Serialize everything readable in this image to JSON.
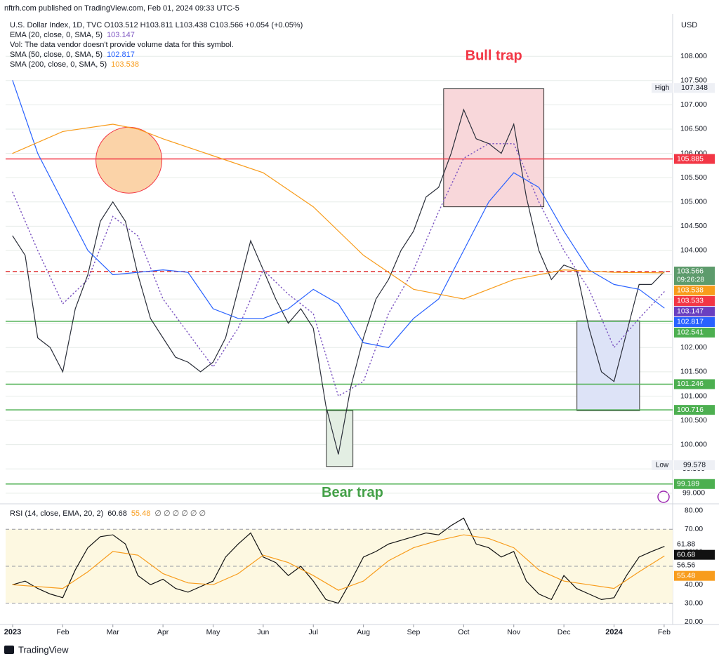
{
  "header": {
    "published": "nftrh.com published on TradingView.com, Feb 01, 2024 09:33 UTC-5",
    "symbol_line": "U.S. Dollar Index, 1D, TVC  O103.512  H103.811  L103.438  C103.566  +0.054 (+0.05%)",
    "volume_note": "Vol: The data vendor doesn't provide volume data for this symbol.",
    "currency": "USD",
    "logo": "TradingView"
  },
  "chart_data": [
    {
      "type": "line",
      "ylim": [
        98.81,
        108.87
      ],
      "xlim": [
        -0.14,
        13.17
      ],
      "grid": true,
      "yticks": [
        {
          "value": 99,
          "label": "99.000"
        },
        {
          "value": 99.5,
          "label": "99.500"
        },
        {
          "value": 100,
          "label": "100.000"
        },
        {
          "value": 100.5,
          "label": "100.500"
        },
        {
          "value": 101,
          "label": "101.000"
        },
        {
          "value": 101.5,
          "label": "101.500"
        },
        {
          "value": 102,
          "label": "102.000"
        },
        {
          "value": 102.5,
          "label": "102.500"
        },
        {
          "value": 103,
          "label": "103.000"
        },
        {
          "value": 103.5,
          "label": "103.500"
        },
        {
          "value": 104,
          "label": "104.000"
        },
        {
          "value": 104.5,
          "label": "104.500"
        },
        {
          "value": 105,
          "label": "105.000"
        },
        {
          "value": 105.5,
          "label": "105.500"
        },
        {
          "value": 106,
          "label": "106.000"
        },
        {
          "value": 106.5,
          "label": "106.500"
        },
        {
          "value": 107,
          "label": "107.000"
        },
        {
          "value": 107.5,
          "label": "107.500"
        },
        {
          "value": 108,
          "label": "108.000"
        }
      ],
      "series": [
        {
          "name": "U.S. Dollar Index",
          "color": "#2a2e39",
          "x": [
            0,
            0.25,
            0.5,
            0.75,
            1,
            1.25,
            1.5,
            1.75,
            2,
            2.25,
            2.5,
            2.75,
            3,
            3.25,
            3.5,
            3.75,
            4,
            4.25,
            4.5,
            4.75,
            5,
            5.25,
            5.5,
            5.75,
            6,
            6.25,
            6.5,
            6.75,
            7,
            7.25,
            7.5,
            7.75,
            8,
            8.25,
            8.5,
            8.75,
            9,
            9.25,
            9.5,
            9.75,
            10,
            10.25,
            10.5,
            10.75,
            11,
            11.25,
            11.5,
            11.75,
            12,
            12.25,
            12.5,
            12.75,
            13
          ],
          "values": [
            104.3,
            103.9,
            102.2,
            102.0,
            101.5,
            102.8,
            103.5,
            104.6,
            105.0,
            104.6,
            103.5,
            102.6,
            102.2,
            101.8,
            101.7,
            101.5,
            101.7,
            102.2,
            103.2,
            104.2,
            103.6,
            103.0,
            102.5,
            102.8,
            102.4,
            100.8,
            99.8,
            101.2,
            102.2,
            103.0,
            103.4,
            104.0,
            104.4,
            105.1,
            105.3,
            106.0,
            106.9,
            106.3,
            106.2,
            106.0,
            106.6,
            105.1,
            104.0,
            103.4,
            103.7,
            103.6,
            102.4,
            101.5,
            101.3,
            102.3,
            103.3,
            103.3,
            103.566
          ]
        },
        {
          "name": "EMA (20, close, 0, SMA, 5)",
          "color": "#7e57c2",
          "dashed": true,
          "x": [
            0,
            0.5,
            1,
            1.5,
            2,
            2.5,
            3,
            3.5,
            4,
            4.5,
            5,
            5.5,
            6,
            6.5,
            7,
            7.5,
            8,
            8.5,
            9,
            9.5,
            10,
            10.5,
            11,
            11.5,
            12,
            12.5,
            13
          ],
          "values": [
            105.2,
            104.0,
            102.9,
            103.4,
            104.7,
            104.3,
            103.0,
            102.3,
            101.6,
            102.4,
            103.6,
            103.1,
            102.7,
            101.0,
            101.3,
            102.7,
            103.6,
            104.8,
            105.9,
            106.2,
            106.2,
            105.0,
            104.0,
            103.2,
            102.0,
            102.6,
            103.147
          ]
        },
        {
          "name": "SMA (50, close, 0, SMA, 5)",
          "color": "#2962ff",
          "x": [
            0,
            0.5,
            1,
            1.5,
            2,
            2.5,
            3,
            3.5,
            4,
            4.5,
            5,
            5.5,
            6,
            6.5,
            7,
            7.5,
            8,
            8.5,
            9,
            9.5,
            10,
            10.5,
            11,
            11.5,
            12,
            12.5,
            13
          ],
          "values": [
            107.5,
            106.0,
            105.0,
            104.0,
            103.5,
            103.55,
            103.6,
            103.55,
            102.8,
            102.6,
            102.6,
            102.8,
            103.2,
            102.9,
            102.1,
            102.0,
            102.6,
            103.0,
            104.0,
            105.0,
            105.6,
            105.3,
            104.4,
            103.6,
            103.3,
            103.2,
            102.817
          ]
        },
        {
          "name": "SMA (200, close, 0, SMA, 5)",
          "color": "#f89c1c",
          "x": [
            0,
            1,
            2,
            2.5,
            3,
            4,
            5,
            6,
            7,
            8,
            9,
            10,
            11,
            12,
            13
          ],
          "values": [
            106.0,
            106.45,
            106.6,
            106.5,
            106.3,
            105.95,
            105.6,
            104.9,
            103.9,
            103.2,
            103.0,
            103.4,
            103.6,
            103.55,
            103.538
          ]
        }
      ],
      "hlines": [
        {
          "value": 105.885,
          "color": "#f23645"
        },
        {
          "value": 102.541,
          "color": "#4caf50"
        },
        {
          "value": 101.246,
          "color": "#4caf50"
        },
        {
          "value": 100.716,
          "color": "#4caf50"
        },
        {
          "value": 99.189,
          "color": "#4caf50"
        },
        {
          "value": 103.566,
          "color": "#e03030",
          "dashed": true
        }
      ],
      "zones": [
        {
          "x": [
            8.6,
            10.6
          ],
          "y": [
            104.9,
            107.33
          ],
          "color": "#f8d7da"
        },
        {
          "x": [
            6.26,
            6.79
          ],
          "y": [
            99.55,
            100.7
          ],
          "color": "#e3eee3"
        },
        {
          "x": [
            11.26,
            12.51
          ],
          "y": [
            100.7,
            102.55
          ],
          "color": "#dde3f7"
        }
      ],
      "circle": {
        "x": 2.32,
        "y": 105.86,
        "color": "#fbd3a8"
      },
      "annotations": [
        {
          "text": "Bull trap",
          "x": 9.6,
          "y": 108.0,
          "color": "#f23645"
        },
        {
          "text": "Bear trap",
          "x": 6.78,
          "y": 99.0,
          "color": "#43a047"
        }
      ],
      "high": {
        "label": "High",
        "value": 107.348
      },
      "low": {
        "label": "Low",
        "value": 99.578
      },
      "countdown": "09:26:28",
      "tags": [
        {
          "value": 105.885,
          "color": "#f23645"
        },
        {
          "value": 103.566,
          "color": "#5d9b6c"
        },
        {
          "value": 103.538,
          "color": "#f89c1c"
        },
        {
          "value": 103.533,
          "color": "#f23645"
        },
        {
          "value": 103.147,
          "color": "#6a3fc0"
        },
        {
          "value": 102.817,
          "color": "#2962ff"
        },
        {
          "value": 102.541,
          "color": "#4caf50"
        },
        {
          "value": 101.246,
          "color": "#4caf50"
        },
        {
          "value": 100.716,
          "color": "#4caf50"
        },
        {
          "value": 99.189,
          "color": "#4caf50"
        }
      ],
      "xticks": [
        {
          "value": 0,
          "label": "2023"
        },
        {
          "value": 1,
          "label": "Feb"
        },
        {
          "value": 2,
          "label": "Mar"
        },
        {
          "value": 3,
          "label": "Apr"
        },
        {
          "value": 4,
          "label": "May"
        },
        {
          "value": 5,
          "label": "Jun"
        },
        {
          "value": 6,
          "label": "Jul"
        },
        {
          "value": 7,
          "label": "Aug"
        },
        {
          "value": 8,
          "label": "Sep"
        },
        {
          "value": 9,
          "label": "Oct"
        },
        {
          "value": 10,
          "label": "Nov"
        },
        {
          "value": 11,
          "label": "Dec"
        },
        {
          "value": 12,
          "label": "2024"
        },
        {
          "value": 13,
          "label": "Feb"
        }
      ]
    },
    {
      "type": "line",
      "title": "RSI (14, close, EMA, 20, 2)",
      "symbols": "∅ ∅ ∅ ∅ ∅ ∅",
      "ylim": [
        18.5,
        83
      ],
      "xlim": [
        -0.14,
        13.17
      ],
      "band": [
        30,
        70
      ],
      "levels": [
        70,
        50,
        30
      ],
      "yticks": [
        {
          "value": 20,
          "label": "20.00"
        },
        {
          "value": 30,
          "label": "30.00"
        },
        {
          "value": 40,
          "label": "40.00"
        },
        {
          "value": 50,
          "label": "50.00"
        },
        {
          "value": 60,
          "label": "60.00"
        },
        {
          "value": 70,
          "label": "70.00"
        },
        {
          "value": 80,
          "label": "80.00"
        }
      ],
      "series": [
        {
          "name": "RSI",
          "color": "#111111",
          "x": [
            0,
            0.25,
            0.5,
            0.75,
            1,
            1.25,
            1.5,
            1.75,
            2,
            2.25,
            2.5,
            2.75,
            3,
            3.25,
            3.5,
            3.75,
            4,
            4.25,
            4.5,
            4.75,
            5,
            5.25,
            5.5,
            5.75,
            6,
            6.25,
            6.5,
            6.75,
            7,
            7.25,
            7.5,
            7.75,
            8,
            8.25,
            8.5,
            8.75,
            9,
            9.25,
            9.5,
            9.75,
            10,
            10.25,
            10.5,
            10.75,
            11,
            11.25,
            11.5,
            11.75,
            12,
            12.25,
            12.5,
            12.75,
            13
          ],
          "values": [
            40,
            42,
            38,
            35,
            33,
            48,
            60,
            66,
            67,
            62,
            45,
            40,
            43,
            38,
            36,
            39,
            42,
            55,
            62,
            68,
            55,
            52,
            45,
            50,
            42,
            32,
            30,
            42,
            55,
            58,
            62,
            64,
            66,
            68,
            67,
            72,
            76,
            62,
            60,
            55,
            58,
            42,
            35,
            32,
            45,
            38,
            35,
            32,
            33,
            45,
            55,
            58,
            60.68
          ]
        },
        {
          "name": "EMA",
          "color": "#f89c1c",
          "x": [
            0,
            1,
            1.5,
            2,
            2.5,
            3,
            3.5,
            4,
            4.5,
            5,
            5.5,
            6,
            6.5,
            7,
            7.5,
            8,
            8.5,
            9,
            9.5,
            10,
            10.5,
            11,
            11.5,
            12,
            12.5,
            13
          ],
          "values": [
            40,
            38,
            47,
            58,
            56,
            46,
            41,
            40,
            46,
            56,
            52,
            45,
            37,
            42,
            53,
            60,
            64,
            67,
            65,
            60,
            48,
            42,
            40,
            38,
            47,
            55.48
          ]
        }
      ],
      "tags": [
        {
          "value": 61.88,
          "color": "none"
        },
        {
          "value": 60.68,
          "color": "#111111"
        },
        {
          "value": 56.56,
          "color": "none"
        },
        {
          "value": 55.48,
          "color": "#f89c1c"
        }
      ]
    }
  ]
}
